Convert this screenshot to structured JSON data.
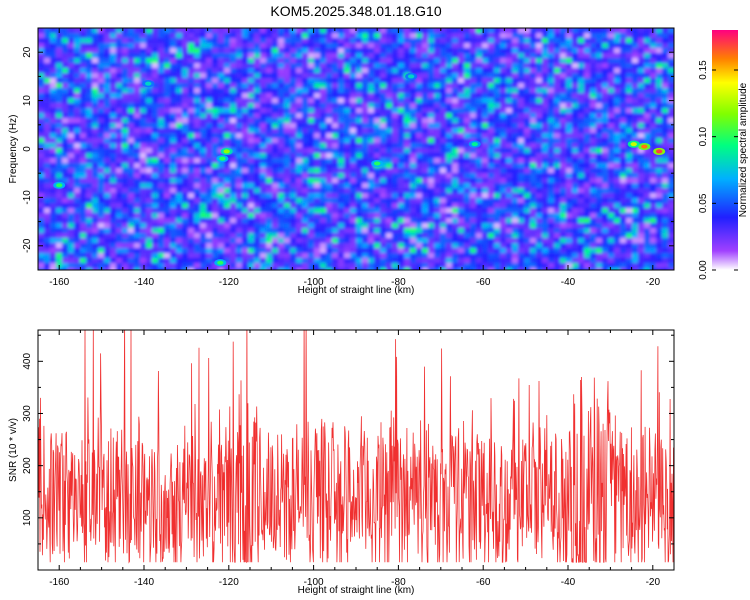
{
  "title": "KOM5.2025.348.01.18.G10",
  "chart_data": [
    {
      "type": "heatmap",
      "xlabel": "Height of straight line (km)",
      "ylabel": "Frequency (Hz)",
      "xlim": [
        -165,
        -15
      ],
      "ylim": [
        -25,
        25
      ],
      "xticks": [
        -160,
        -140,
        -120,
        -100,
        -80,
        -60,
        -40,
        -20
      ],
      "yticks": [
        -20,
        -10,
        0,
        10,
        20
      ],
      "colorbar": {
        "label": "Normalized spectral amplitude",
        "range": [
          0,
          0.18
        ],
        "ticks": [
          0.0,
          0.05,
          0.1,
          0.15
        ],
        "tick_labels": [
          "0.00",
          "0.05",
          "0.10",
          "0.15"
        ]
      },
      "hotspots": [
        {
          "x": -120.5,
          "y": -0.5,
          "value": 0.12
        },
        {
          "x": -121.5,
          "y": -2.0,
          "value": 0.1
        },
        {
          "x": -18.5,
          "y": -0.5,
          "value": 0.17
        },
        {
          "x": -22.0,
          "y": 0.5,
          "value": 0.16
        },
        {
          "x": -24.5,
          "y": 1.0,
          "value": 0.13
        },
        {
          "x": -160.0,
          "y": -7.5,
          "value": 0.1
        },
        {
          "x": -85.0,
          "y": -3.0,
          "value": 0.1
        },
        {
          "x": -122.0,
          "y": -23.5,
          "value": 0.1
        },
        {
          "x": -62.0,
          "y": 1.0,
          "value": 0.09
        },
        {
          "x": -139.0,
          "y": 13.5,
          "value": 0.08
        },
        {
          "x": -77.0,
          "y": 15.0,
          "value": 0.08
        }
      ]
    },
    {
      "type": "line",
      "xlabel": "Height of straight line (km)",
      "ylabel": "SNR (10 * v/v)",
      "xlim": [
        -165,
        -15
      ],
      "ylim": [
        0,
        460
      ],
      "xticks": [
        -160,
        -140,
        -120,
        -100,
        -80,
        -60,
        -40,
        -20
      ],
      "yticks": [
        100,
        200,
        300,
        400
      ],
      "series": [
        {
          "name": "SNR",
          "color": "#f03030",
          "baseline": 140,
          "peak_regions": [
            -120,
            -113,
            -40,
            -30
          ]
        }
      ]
    }
  ],
  "colors": {
    "line": "#f03030",
    "axis": "#000000"
  }
}
